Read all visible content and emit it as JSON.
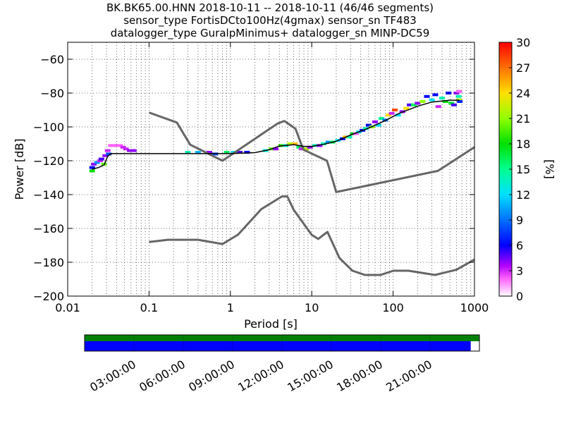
{
  "title_lines": [
    "BK.BK65.00.HNN   2018-10-11 -- 2018-10-11  (46/46 segments)",
    "sensor_type FortisDCto100Hz(4gmax) sensor_sn TF483",
    "datalogger_type GuralpMinimus+ datalogger_sn MINP-DC59"
  ],
  "chart_data": {
    "type": "heatmap",
    "xlabel": "Period [s]",
    "ylabel": "Power [dB]",
    "x_scale": "log",
    "xlim": [
      0.01,
      1000
    ],
    "ylim": [
      -200,
      -50
    ],
    "x_ticks": [
      0.01,
      0.1,
      1,
      10,
      100,
      1000
    ],
    "x_tick_labels": [
      "0.01",
      "0.1",
      "1",
      "10",
      "100",
      "1000"
    ],
    "y_ticks": [
      -200,
      -180,
      -160,
      -140,
      -120,
      -100,
      -80,
      -60
    ],
    "y_tick_labels": [
      "−200",
      "−180",
      "−160",
      "−140",
      "−120",
      "−100",
      "−80",
      "−60"
    ],
    "grid": true,
    "colorbar": {
      "label": "[%]",
      "range": [
        0,
        30
      ],
      "ticks": [
        0,
        3,
        6,
        9,
        12,
        15,
        18,
        21,
        24,
        27,
        30
      ],
      "tick_labels": [
        "0",
        "3",
        "6",
        "9",
        "12",
        "15",
        "18",
        "21",
        "24",
        "27",
        "30"
      ]
    },
    "noise_models": [
      {
        "name": "high",
        "points": [
          [
            0.1,
            -91.5
          ],
          [
            0.22,
            -97.4
          ],
          [
            0.32,
            -110.5
          ],
          [
            0.8,
            -120
          ],
          [
            3.8,
            -98
          ],
          [
            4.6,
            -96.5
          ],
          [
            6.3,
            -101
          ],
          [
            7.9,
            -113.5
          ],
          [
            15.4,
            -120
          ],
          [
            20,
            -138.5
          ],
          [
            354.8,
            -126
          ],
          [
            1000,
            -112
          ]
        ]
      },
      {
        "name": "low",
        "points": [
          [
            0.1,
            -168
          ],
          [
            0.17,
            -166.7
          ],
          [
            0.4,
            -166.7
          ],
          [
            0.8,
            -169.2
          ],
          [
            1.24,
            -163.7
          ],
          [
            2.4,
            -148.6
          ],
          [
            4.3,
            -141.1
          ],
          [
            5,
            -141.1
          ],
          [
            6,
            -149
          ],
          [
            10,
            -163.8
          ],
          [
            12,
            -166.2
          ],
          [
            15.6,
            -162.1
          ],
          [
            21.9,
            -177.5
          ],
          [
            31.6,
            -185
          ],
          [
            45,
            -187.5
          ],
          [
            70,
            -187.5
          ],
          [
            101,
            -185
          ],
          [
            154,
            -185
          ],
          [
            328,
            -187.5
          ],
          [
            600,
            -184.4
          ],
          [
            1000,
            -178.4
          ]
        ]
      }
    ],
    "mode_curve": [
      [
        0.02,
        -125
      ],
      [
        0.024,
        -124
      ],
      [
        0.028,
        -122.5
      ],
      [
        0.031,
        -117.5
      ],
      [
        0.034,
        -115.8
      ],
      [
        0.1,
        -115.8
      ],
      [
        1,
        -115.8
      ],
      [
        2,
        -115.2
      ],
      [
        3,
        -113.5
      ],
      [
        4,
        -111.3
      ],
      [
        6,
        -110.5
      ],
      [
        8,
        -111.5
      ],
      [
        10,
        -111.5
      ],
      [
        14,
        -110.3
      ],
      [
        20,
        -108.5
      ],
      [
        30,
        -104.8
      ],
      [
        50,
        -100.7
      ],
      [
        80,
        -96.3
      ],
      [
        120,
        -91.9
      ],
      [
        200,
        -87.8
      ],
      [
        300,
        -85.3
      ],
      [
        500,
        -84.2
      ],
      [
        650,
        -84.2
      ]
    ],
    "psd_cells": [
      [
        0.02,
        -126,
        18
      ],
      [
        0.02,
        -124,
        6
      ],
      [
        0.021,
        -122,
        4
      ],
      [
        0.023,
        -121,
        10
      ],
      [
        0.025,
        -120,
        3
      ],
      [
        0.026,
        -119,
        5
      ],
      [
        0.028,
        -122,
        20
      ],
      [
        0.029,
        -117,
        4
      ],
      [
        0.031,
        -114,
        3
      ],
      [
        0.032,
        -116,
        8
      ],
      [
        0.034,
        -111,
        2
      ],
      [
        0.036,
        -111,
        2
      ],
      [
        0.04,
        -111,
        2
      ],
      [
        0.044,
        -111,
        2
      ],
      [
        0.048,
        -112,
        3
      ],
      [
        0.052,
        -113,
        3
      ],
      [
        0.058,
        -114,
        4
      ],
      [
        0.065,
        -114,
        4
      ],
      [
        0.3,
        -115,
        14
      ],
      [
        0.4,
        -115,
        11
      ],
      [
        0.55,
        -115,
        4
      ],
      [
        0.65,
        -116,
        8
      ],
      [
        0.9,
        -115,
        16
      ],
      [
        1.1,
        -115,
        12
      ],
      [
        1.3,
        -115,
        5
      ],
      [
        1.6,
        -115,
        6
      ],
      [
        2.7,
        -114,
        13
      ],
      [
        3.2,
        -113,
        20
      ],
      [
        3.6,
        -113,
        4
      ],
      [
        4.2,
        -111,
        19
      ],
      [
        4.8,
        -111,
        13
      ],
      [
        5.4,
        -110,
        22
      ],
      [
        6.2,
        -110,
        25
      ],
      [
        7,
        -112,
        16
      ],
      [
        7.5,
        -113,
        3
      ],
      [
        8.6,
        -113,
        22
      ],
      [
        9.5,
        -112,
        4
      ],
      [
        11,
        -111,
        14
      ],
      [
        12.5,
        -111,
        4
      ],
      [
        14,
        -110,
        14
      ],
      [
        16,
        -109,
        10
      ],
      [
        18,
        -109,
        16
      ],
      [
        21,
        -108,
        12
      ],
      [
        24,
        -107,
        6
      ],
      [
        26,
        -106,
        25
      ],
      [
        29,
        -106,
        14
      ],
      [
        32,
        -104,
        18
      ],
      [
        35,
        -104,
        2
      ],
      [
        38,
        -103,
        12
      ],
      [
        42,
        -102,
        6
      ],
      [
        46,
        -101,
        14
      ],
      [
        50,
        -99,
        6
      ],
      [
        55,
        -100,
        21
      ],
      [
        60,
        -97,
        4
      ],
      [
        66,
        -99,
        12
      ],
      [
        72,
        -95,
        15
      ],
      [
        80,
        -96,
        9
      ],
      [
        88,
        -93,
        24
      ],
      [
        96,
        -92,
        3
      ],
      [
        105,
        -90,
        28
      ],
      [
        115,
        -93,
        12
      ],
      [
        130,
        -91,
        4
      ],
      [
        145,
        -89,
        24
      ],
      [
        160,
        -87,
        5
      ],
      [
        180,
        -87,
        16
      ],
      [
        200,
        -86,
        4
      ],
      [
        230,
        -85,
        21
      ],
      [
        260,
        -82,
        6
      ],
      [
        300,
        -84,
        12
      ],
      [
        330,
        -81,
        6
      ],
      [
        360,
        -88,
        3
      ],
      [
        400,
        -83,
        14
      ],
      [
        440,
        -85,
        18
      ],
      [
        480,
        -80,
        6
      ],
      [
        520,
        -86,
        17
      ],
      [
        560,
        -87,
        5
      ],
      [
        600,
        -80,
        4
      ],
      [
        640,
        -82,
        14
      ],
      [
        650,
        -84,
        22
      ],
      [
        660,
        -85,
        7
      ],
      [
        650,
        -79,
        2
      ]
    ]
  },
  "coverage": {
    "time_tick_labels": [
      "03:00:00",
      "06:00:00",
      "09:00:00",
      "12:00:00",
      "15:00:00",
      "18:00:00",
      "21:00:00"
    ],
    "time_ticks_hours": [
      3,
      6,
      9,
      12,
      15,
      18,
      21
    ],
    "data_fraction": 0.978,
    "psd_fraction": 1.0,
    "colors": {
      "data": "#0000ff",
      "psd": "#008000"
    }
  },
  "colors": {
    "noise_model": "#666666",
    "mode_line": "#000000",
    "grid": "#444444"
  }
}
